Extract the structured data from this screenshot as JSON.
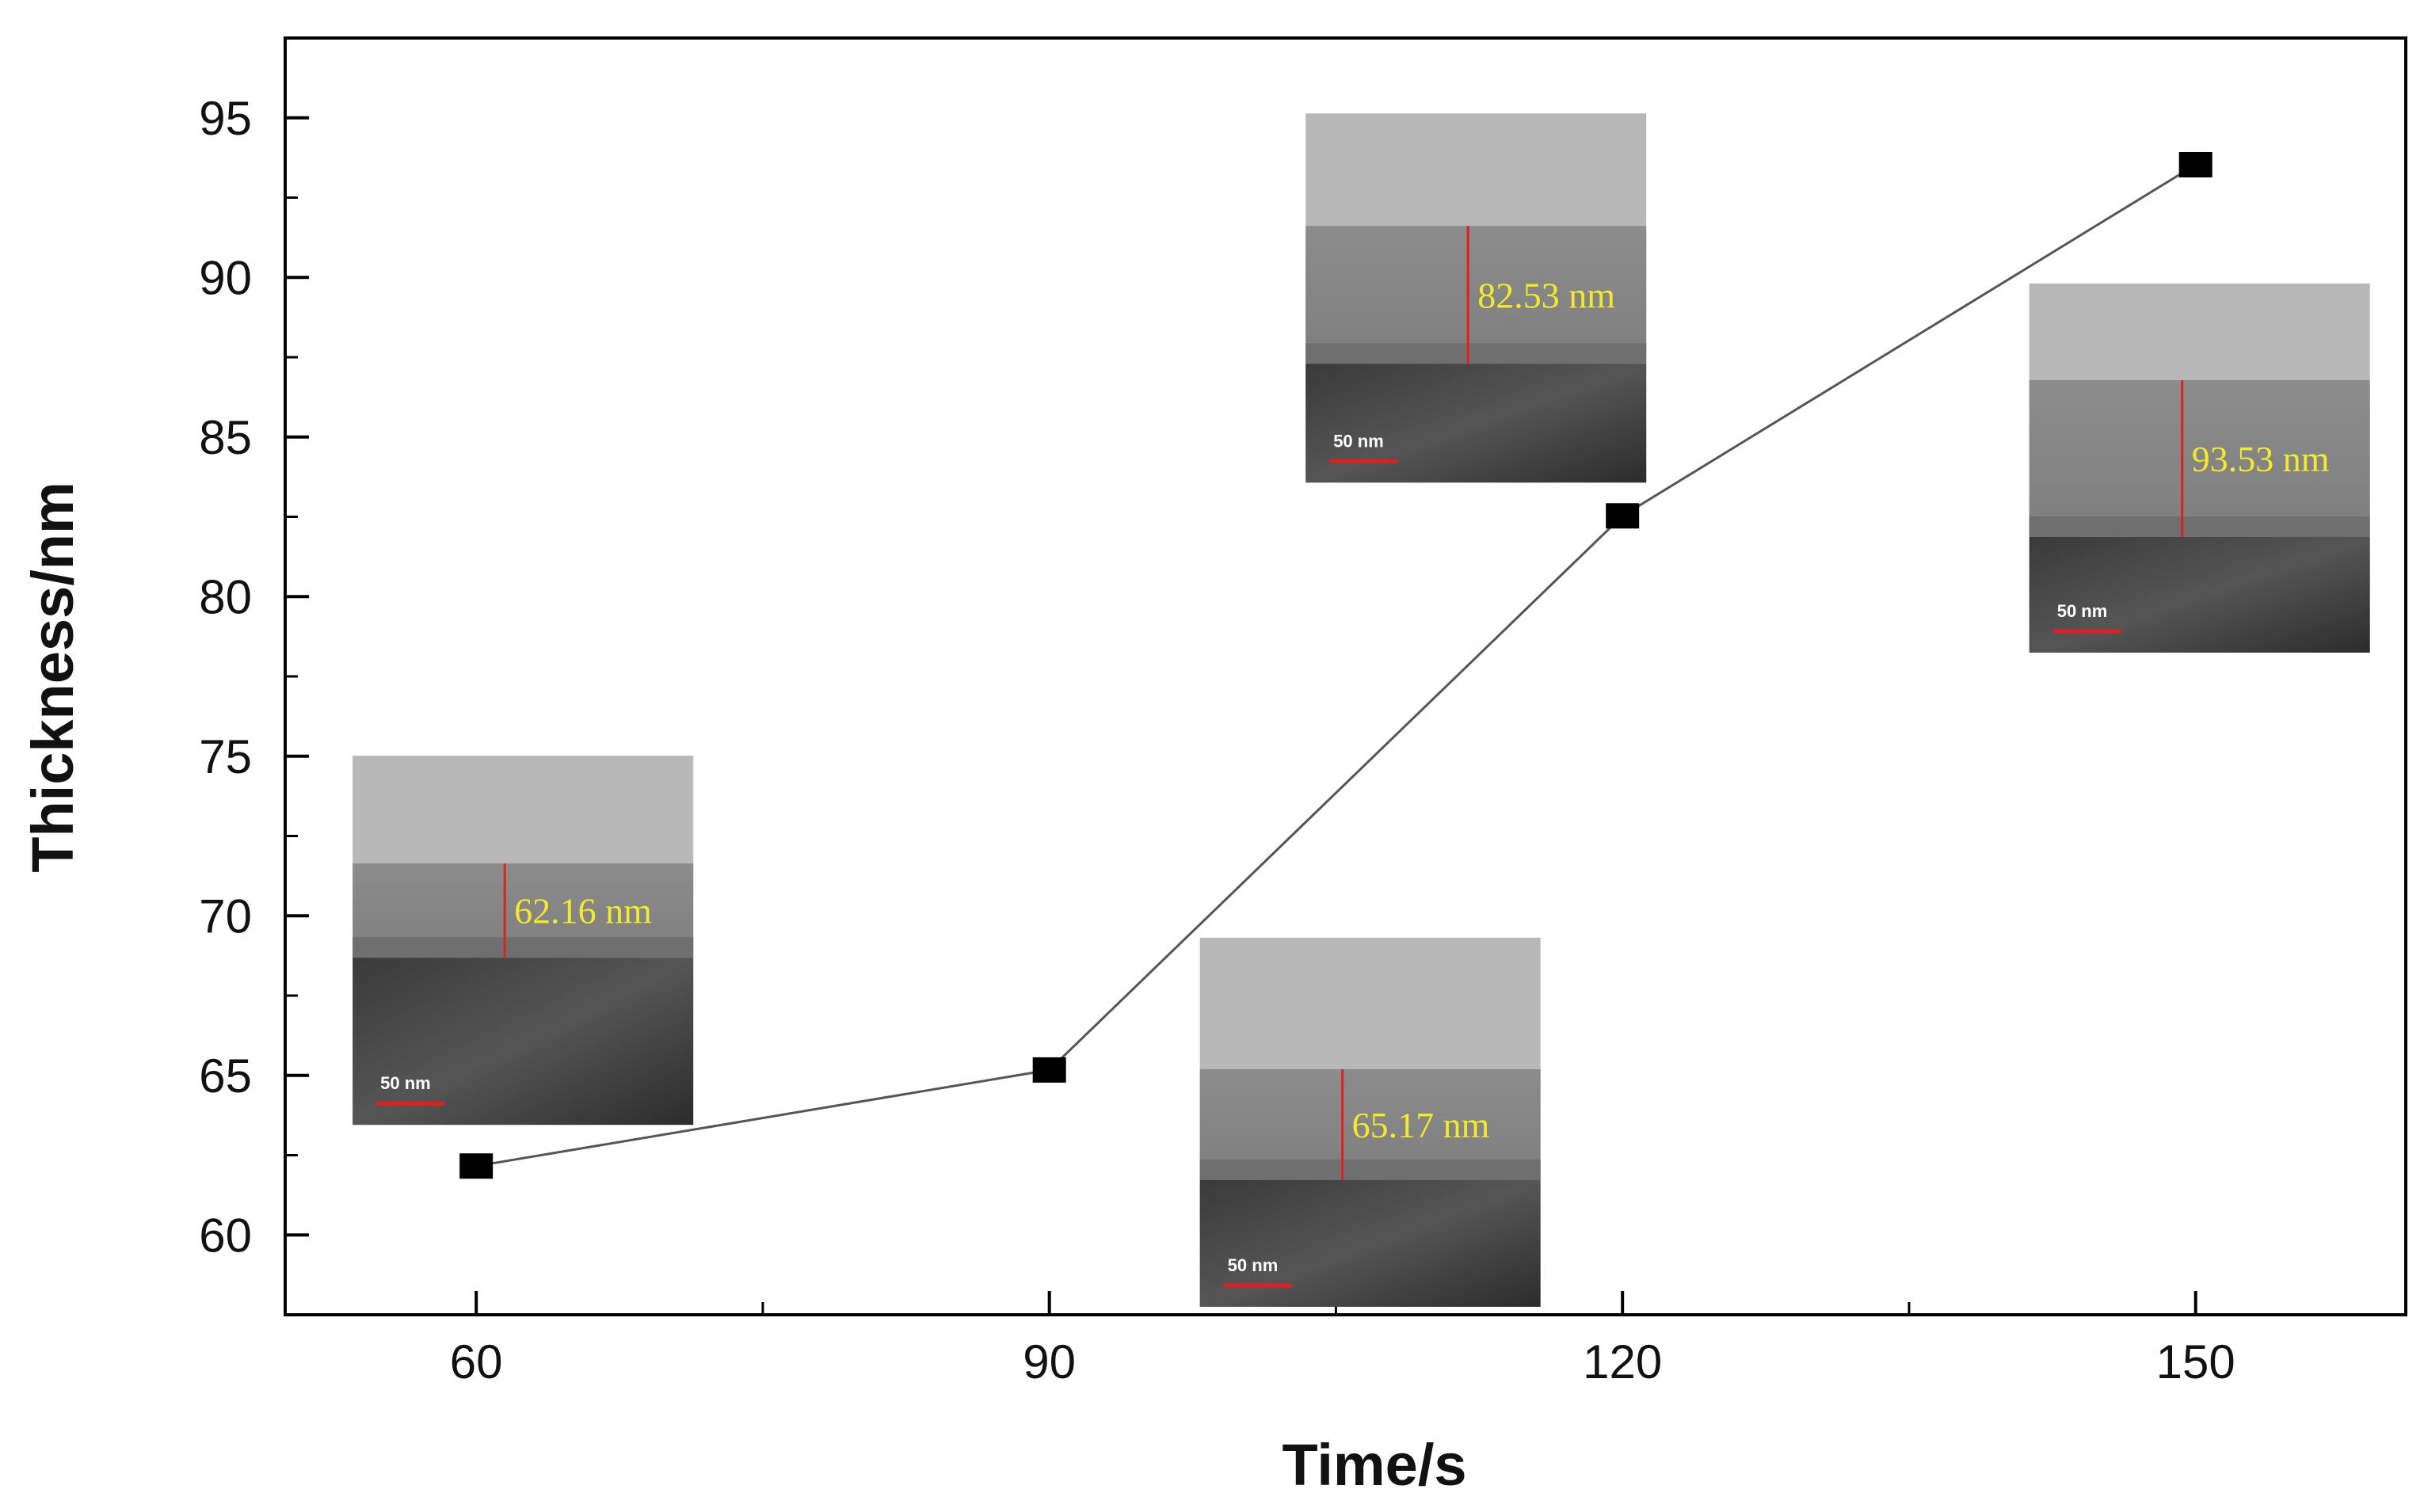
{
  "chart_data": {
    "type": "line",
    "title": "",
    "xlabel": "Time/s",
    "ylabel": "Thickness/nm",
    "x": [
      60,
      90,
      120,
      150
    ],
    "series": [
      {
        "values": [
          62.16,
          65.17,
          82.53,
          93.53
        ],
        "color": "#555555",
        "marker": "square",
        "marker_color": "#000000"
      }
    ],
    "xlim": [
      50,
      161
    ],
    "ylim": [
      57.5,
      97.5
    ],
    "xticks": [
      60,
      90,
      120,
      150
    ],
    "xtick_labels": [
      "60",
      "90",
      "120",
      "150"
    ],
    "yticks": [
      60,
      65,
      70,
      75,
      80,
      85,
      90,
      95
    ],
    "ytick_labels": [
      "60",
      "65",
      "70",
      "75",
      "80",
      "85",
      "90",
      "95"
    ],
    "grid": false,
    "legend": "none",
    "insets": [
      {
        "x": 60,
        "label": "62.16 nm",
        "scale_bar": "50 nm"
      },
      {
        "x": 90,
        "label": "65.17 nm",
        "scale_bar": "50 nm"
      },
      {
        "x": 120,
        "label": "82.53 nm",
        "scale_bar": "50 nm"
      },
      {
        "x": 150,
        "label": "93.53 nm",
        "scale_bar": "50 nm"
      }
    ]
  }
}
